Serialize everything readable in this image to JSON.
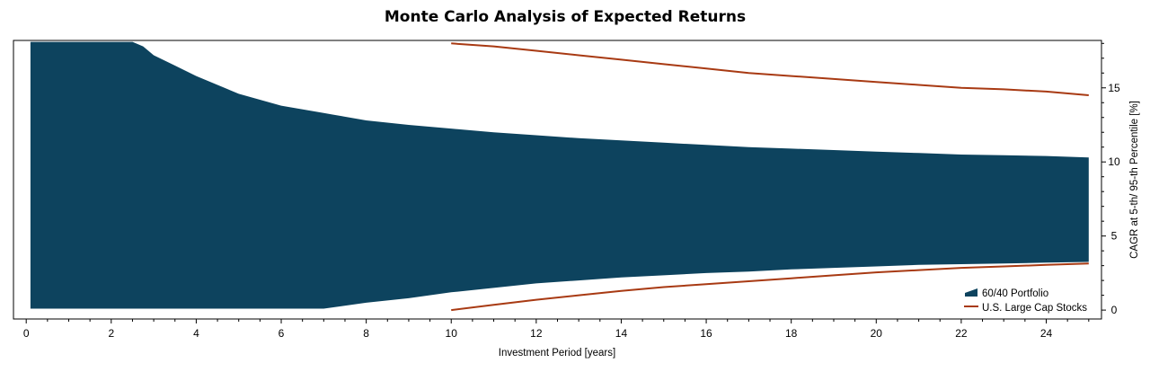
{
  "chart_data": {
    "type": "area",
    "title": "Monte Carlo Analysis of Expected Returns",
    "xlabel": "Investment Period [years]",
    "ylabel": "CAGR at 5-th/ 95-th Percentile [%]",
    "xlim": [
      -0.3,
      25.3
    ],
    "ylim": [
      -0.6,
      18.2
    ],
    "x_ticks": [
      0,
      2,
      4,
      6,
      8,
      10,
      12,
      14,
      16,
      18,
      20,
      22,
      24
    ],
    "y_ticks": [
      0,
      5,
      10,
      15
    ],
    "y_axis_side": "right",
    "grid": false,
    "legend_position": "bottom-right",
    "series": [
      {
        "name": "60/40 Portfolio",
        "type": "area",
        "color": "#0d435e",
        "x": [
          0.1,
          2.5,
          2.75,
          3,
          3.5,
          4,
          4.5,
          5,
          6,
          7,
          8,
          9,
          10,
          11,
          12,
          13,
          14,
          15,
          16,
          17,
          18,
          19,
          20,
          21,
          22,
          23,
          24,
          25
        ],
        "upper": [
          18.1,
          18.1,
          17.8,
          17.2,
          16.5,
          15.8,
          15.2,
          14.6,
          13.8,
          13.3,
          12.8,
          12.5,
          12.25,
          12.0,
          11.8,
          11.6,
          11.45,
          11.3,
          11.15,
          11.0,
          10.9,
          10.8,
          10.7,
          10.6,
          10.5,
          10.45,
          10.4,
          10.3
        ],
        "lower": [
          0.1,
          0.1,
          0.1,
          0.1,
          0.1,
          0.1,
          0.1,
          0.1,
          0.1,
          0.1,
          0.5,
          0.8,
          1.2,
          1.5,
          1.8,
          2.0,
          2.2,
          2.35,
          2.5,
          2.6,
          2.75,
          2.85,
          2.95,
          3.05,
          3.1,
          3.15,
          3.2,
          3.25
        ]
      },
      {
        "name": "U.S. Large Cap Stocks",
        "type": "line",
        "color": "#a83a13",
        "x": [
          10,
          11,
          12,
          13,
          14,
          15,
          16,
          17,
          18,
          19,
          20,
          21,
          22,
          23,
          24,
          25
        ],
        "upper": [
          18.0,
          17.8,
          17.5,
          17.2,
          16.9,
          16.6,
          16.3,
          16.0,
          15.8,
          15.6,
          15.4,
          15.2,
          15.0,
          14.9,
          14.75,
          14.5
        ],
        "lower": [
          0.0,
          0.35,
          0.7,
          1.0,
          1.3,
          1.55,
          1.75,
          1.95,
          2.15,
          2.35,
          2.55,
          2.7,
          2.85,
          2.95,
          3.05,
          3.15
        ]
      }
    ]
  }
}
